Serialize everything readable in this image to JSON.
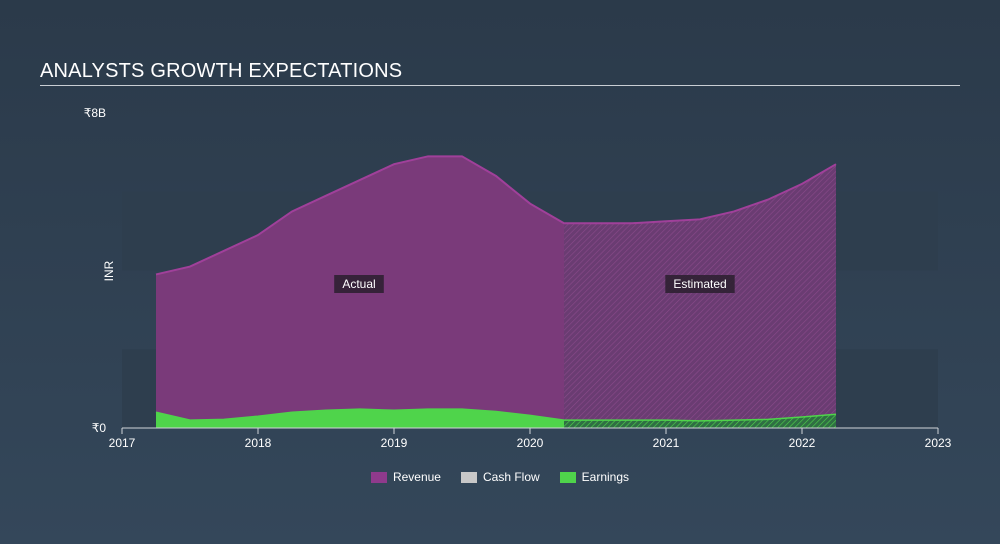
{
  "title": "ANALYSTS GROWTH EXPECTATIONS",
  "colors": {
    "revenue": "#8f3a8c",
    "cash_flow": "#c8c8c8",
    "earnings": "#4fd44b",
    "band": "#2e3e4e"
  },
  "chart_data": {
    "type": "area",
    "ylabel": "INR",
    "y_top_label": "₹8B",
    "y_zero_label": "₹0",
    "ylim": [
      0,
      8
    ],
    "xlim": [
      2017,
      2023
    ],
    "x_ticks": [
      "2017",
      "2018",
      "2019",
      "2020",
      "2021",
      "2022",
      "2023"
    ],
    "annotations": {
      "actual": "Actual",
      "estimated": "Estimated"
    },
    "split_x": 2020.25,
    "series": [
      {
        "name": "Revenue",
        "x": [
          2017.25,
          2017.5,
          2017.75,
          2018.0,
          2018.25,
          2018.5,
          2018.75,
          2019.0,
          2019.25,
          2019.5,
          2019.75,
          2020.0,
          2020.25,
          2020.5,
          2020.75,
          2021.0,
          2021.25,
          2021.5,
          2021.75,
          2022.0,
          2022.25
        ],
        "values": [
          3.9,
          4.1,
          4.5,
          4.9,
          5.5,
          5.9,
          6.3,
          6.7,
          6.9,
          6.9,
          6.4,
          5.7,
          5.2,
          5.2,
          5.2,
          5.25,
          5.3,
          5.5,
          5.8,
          6.2,
          6.7
        ]
      },
      {
        "name": "Cash Flow",
        "x": [],
        "values": []
      },
      {
        "name": "Earnings",
        "x": [
          2017.25,
          2017.5,
          2017.75,
          2018.0,
          2018.25,
          2018.5,
          2018.75,
          2019.0,
          2019.25,
          2019.5,
          2019.75,
          2020.0,
          2020.25,
          2020.5,
          2020.75,
          2021.0,
          2021.25,
          2021.5,
          2021.75,
          2022.0,
          2022.25
        ],
        "values": [
          0.4,
          0.2,
          0.22,
          0.3,
          0.4,
          0.45,
          0.48,
          0.45,
          0.48,
          0.48,
          0.42,
          0.32,
          0.2,
          0.2,
          0.2,
          0.2,
          0.18,
          0.2,
          0.22,
          0.28,
          0.35
        ]
      }
    ],
    "legend": [
      "Revenue",
      "Cash Flow",
      "Earnings"
    ]
  }
}
